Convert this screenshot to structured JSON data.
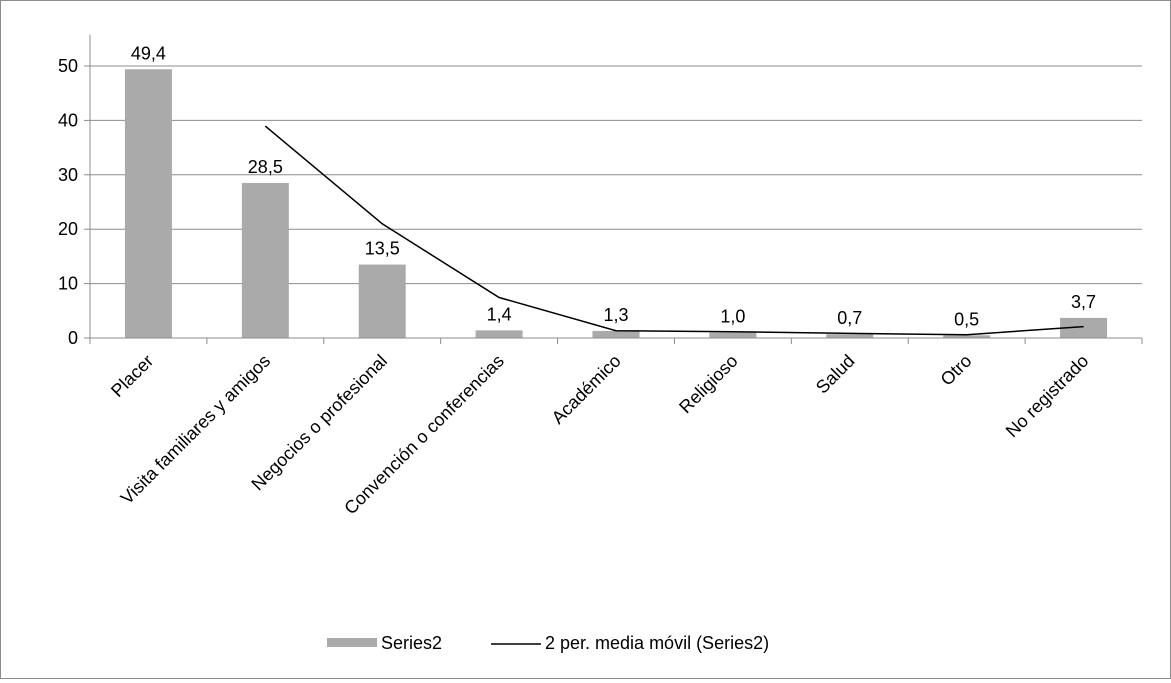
{
  "chart_data": {
    "type": "bar",
    "categories": [
      "Placer",
      "Visita familiares y amigos",
      "Negocios o profesional",
      "Convención o conferencias",
      "Académico",
      "Religioso",
      "Salud",
      "Otro",
      "No registrado"
    ],
    "series": [
      {
        "name": "Series2",
        "type": "bar",
        "values": [
          49.4,
          28.5,
          13.5,
          1.4,
          1.3,
          1.0,
          0.7,
          0.5,
          3.7
        ],
        "labels": [
          "49,4",
          "28,5",
          "13,5",
          "1,4",
          "1,3",
          "1,0",
          "0,7",
          "0,5",
          "3,7"
        ],
        "color": "#aaaaaa"
      },
      {
        "name": "2 per. media móvil (Series2)",
        "type": "line",
        "values": [
          null,
          38.95,
          21.0,
          7.45,
          1.35,
          1.15,
          0.85,
          0.6,
          2.1
        ],
        "color": "#000000"
      }
    ],
    "y_ticks": [
      "0",
      "10",
      "20",
      "30",
      "40",
      "50"
    ],
    "ylim": [
      0,
      55
    ],
    "grid": true,
    "legend": "bottom"
  }
}
